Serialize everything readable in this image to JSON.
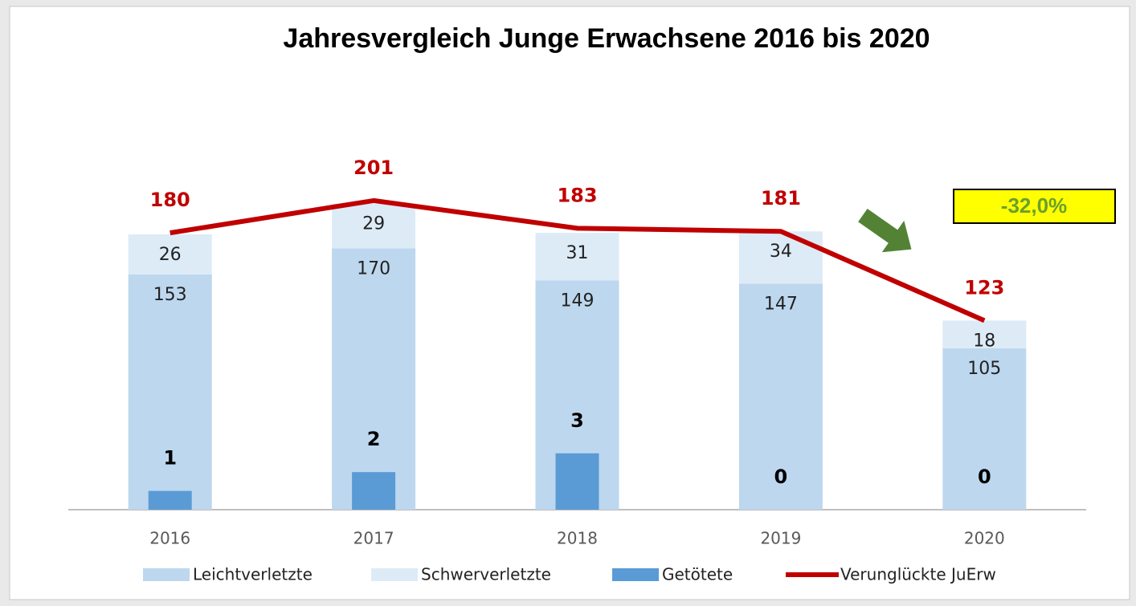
{
  "chart_data": {
    "type": "bar",
    "title": "Jahresvergleich Junge Erwachsene 2016 bis 2020",
    "categories": [
      "2016",
      "2017",
      "2018",
      "2019",
      "2020"
    ],
    "series": [
      {
        "name": "Leichtverletzte",
        "color": "#bdd7ee",
        "values": [
          153,
          170,
          149,
          147,
          105
        ]
      },
      {
        "name": "Schwerverletzte",
        "color": "#ddebf7",
        "values": [
          26,
          29,
          31,
          34,
          18
        ]
      },
      {
        "name": "Getötete",
        "color": "#5b9bd5",
        "axis": "y2",
        "values": [
          1,
          2,
          3,
          0,
          0
        ]
      },
      {
        "name": "Verunglückte JuErw",
        "color": "#c00000",
        "type": "line",
        "values": [
          180,
          201,
          183,
          181,
          123
        ]
      }
    ],
    "stacked": true,
    "ylim": [
      0,
      220
    ],
    "y2lim": [
      0,
      18
    ],
    "annotations": [
      {
        "text": "-32,0%"
      }
    ]
  }
}
